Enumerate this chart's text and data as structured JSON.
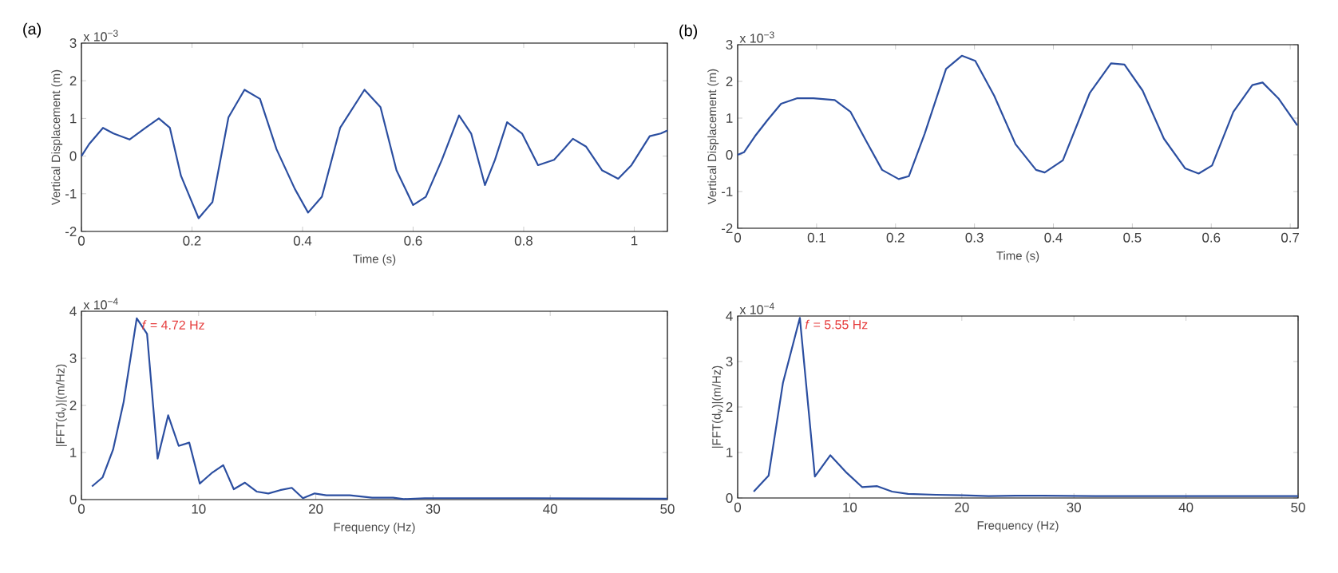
{
  "chart_data": [
    {
      "type": "line",
      "title": "(a)",
      "xlabel": "Time (s)",
      "ylabel": "Vertical Displacement (m)",
      "annotations": [
        "x 10$^{−3}$"
      ],
      "xlim": [
        0,
        1.06
      ],
      "ylim": [
        -2,
        3
      ],
      "xticks": [
        0,
        0.2,
        0.4,
        0.6,
        0.8,
        1
      ],
      "yticks": [
        -2,
        -1,
        0,
        1,
        2,
        3
      ],
      "x": [
        0,
        0.014,
        0.039,
        0.058,
        0.087,
        0.116,
        0.14,
        0.16,
        0.18,
        0.212,
        0.237,
        0.266,
        0.295,
        0.323,
        0.353,
        0.386,
        0.41,
        0.435,
        0.468,
        0.512,
        0.541,
        0.57,
        0.6,
        0.623,
        0.652,
        0.683,
        0.705,
        0.73,
        0.748,
        0.77,
        0.797,
        0.826,
        0.855,
        0.889,
        0.913,
        0.942,
        0.971,
        0.995,
        1.028,
        1.048,
        1.06
      ],
      "series": [
        {
          "color": "#2b4ea0",
          "values": [
            0,
            0.32,
            0.75,
            0.6,
            0.44,
            0.75,
            1.0,
            0.75,
            -0.52,
            -1.65,
            -1.22,
            1.03,
            1.76,
            1.52,
            0.18,
            -0.87,
            -1.5,
            -1.08,
            0.75,
            1.76,
            1.3,
            -0.38,
            -1.3,
            -1.08,
            -0.1,
            1.08,
            0.6,
            -0.77,
            -0.1,
            0.9,
            0.6,
            -0.24,
            -0.1,
            0.46,
            0.25,
            -0.38,
            -0.6,
            -0.24,
            0.53,
            0.6,
            0.68
          ]
        }
      ]
    },
    {
      "type": "line",
      "title": "(b)",
      "xlabel": "Time (s)",
      "ylabel": "Vertical Displacement (m)",
      "annotations": [
        "x 10$^{−3}$"
      ],
      "xlim": [
        0,
        0.71
      ],
      "ylim": [
        -2,
        3
      ],
      "xticks": [
        0,
        0.1,
        0.2,
        0.3,
        0.4,
        0.5,
        0.6,
        0.7
      ],
      "yticks": [
        -2,
        -1,
        0,
        1,
        2,
        3
      ],
      "x": [
        0,
        0.008,
        0.022,
        0.038,
        0.055,
        0.075,
        0.096,
        0.123,
        0.143,
        0.163,
        0.183,
        0.204,
        0.217,
        0.237,
        0.264,
        0.284,
        0.301,
        0.325,
        0.352,
        0.378,
        0.389,
        0.412,
        0.446,
        0.473,
        0.49,
        0.513,
        0.54,
        0.567,
        0.584,
        0.601,
        0.628,
        0.652,
        0.665,
        0.685,
        0.709
      ],
      "series": [
        {
          "color": "#2b4ea0",
          "values": [
            0,
            0.07,
            0.51,
            0.95,
            1.39,
            1.54,
            1.54,
            1.49,
            1.17,
            0.37,
            -0.41,
            -0.66,
            -0.58,
            0.58,
            2.34,
            2.7,
            2.56,
            1.61,
            0.29,
            -0.41,
            -0.48,
            -0.15,
            1.68,
            2.49,
            2.46,
            1.75,
            0.44,
            -0.37,
            -0.51,
            -0.29,
            1.17,
            1.9,
            1.97,
            1.54,
            0.8
          ]
        }
      ]
    },
    {
      "type": "line",
      "xlabel": "Frequency (Hz)",
      "ylabel": "|FFT(d$_{v}$)|(m/Hz)",
      "annotations": [
        "x 10$^{−4}$",
        {
          "text": "*f* = 4.72 Hz",
          "x": 4.72,
          "y": 3.85
        }
      ],
      "xlim": [
        0,
        50
      ],
      "ylim": [
        0,
        4
      ],
      "xticks": [
        0,
        10,
        20,
        30,
        40,
        50
      ],
      "yticks": [
        0,
        1,
        2,
        3,
        4
      ],
      "x": [
        0.9,
        1.8,
        2.7,
        3.6,
        4.72,
        5.6,
        6.5,
        7.4,
        8.3,
        9.2,
        10.1,
        11.1,
        12.1,
        13.0,
        13.95,
        14.95,
        15.95,
        16.95,
        17.95,
        18.9,
        19.9,
        20.9,
        22.9,
        24.8,
        26.6,
        27.5,
        29.3,
        33.9,
        38.4,
        50
      ],
      "series": [
        {
          "color": "#2b4ea0",
          "values": [
            0.28,
            0.47,
            1.06,
            2.07,
            3.85,
            3.52,
            0.87,
            1.79,
            1.14,
            1.21,
            0.34,
            0.56,
            0.73,
            0.22,
            0.36,
            0.17,
            0.13,
            0.2,
            0.25,
            0.03,
            0.13,
            0.09,
            0.09,
            0.04,
            0.04,
            0.01,
            0.03,
            0.03,
            0.03,
            0.02
          ]
        }
      ]
    },
    {
      "type": "line",
      "xlabel": "Frequency (Hz)",
      "ylabel": "|FFT(d$_{v}$)|(m/Hz)",
      "annotations": [
        "x 10$^{−4}$",
        {
          "text": "*f* = 5.55 Hz",
          "x": 5.55,
          "y": 3.96
        }
      ],
      "xlim": [
        0,
        50
      ],
      "ylim": [
        0,
        4
      ],
      "xticks": [
        0,
        10,
        20,
        30,
        40,
        50
      ],
      "yticks": [
        0,
        1,
        2,
        3,
        4
      ],
      "x": [
        1.43,
        2.76,
        4.04,
        5.55,
        6.89,
        8.27,
        9.74,
        11.1,
        12.45,
        13.78,
        15.2,
        17.7,
        20.1,
        22.4,
        24.8,
        27.2,
        31.9,
        41.4,
        50
      ],
      "series": [
        {
          "color": "#2b4ea0",
          "values": [
            0.14,
            0.49,
            2.53,
            3.96,
            0.47,
            0.94,
            0.55,
            0.24,
            0.26,
            0.14,
            0.09,
            0.07,
            0.06,
            0.04,
            0.05,
            0.05,
            0.04,
            0.04,
            0.04
          ]
        }
      ]
    }
  ]
}
